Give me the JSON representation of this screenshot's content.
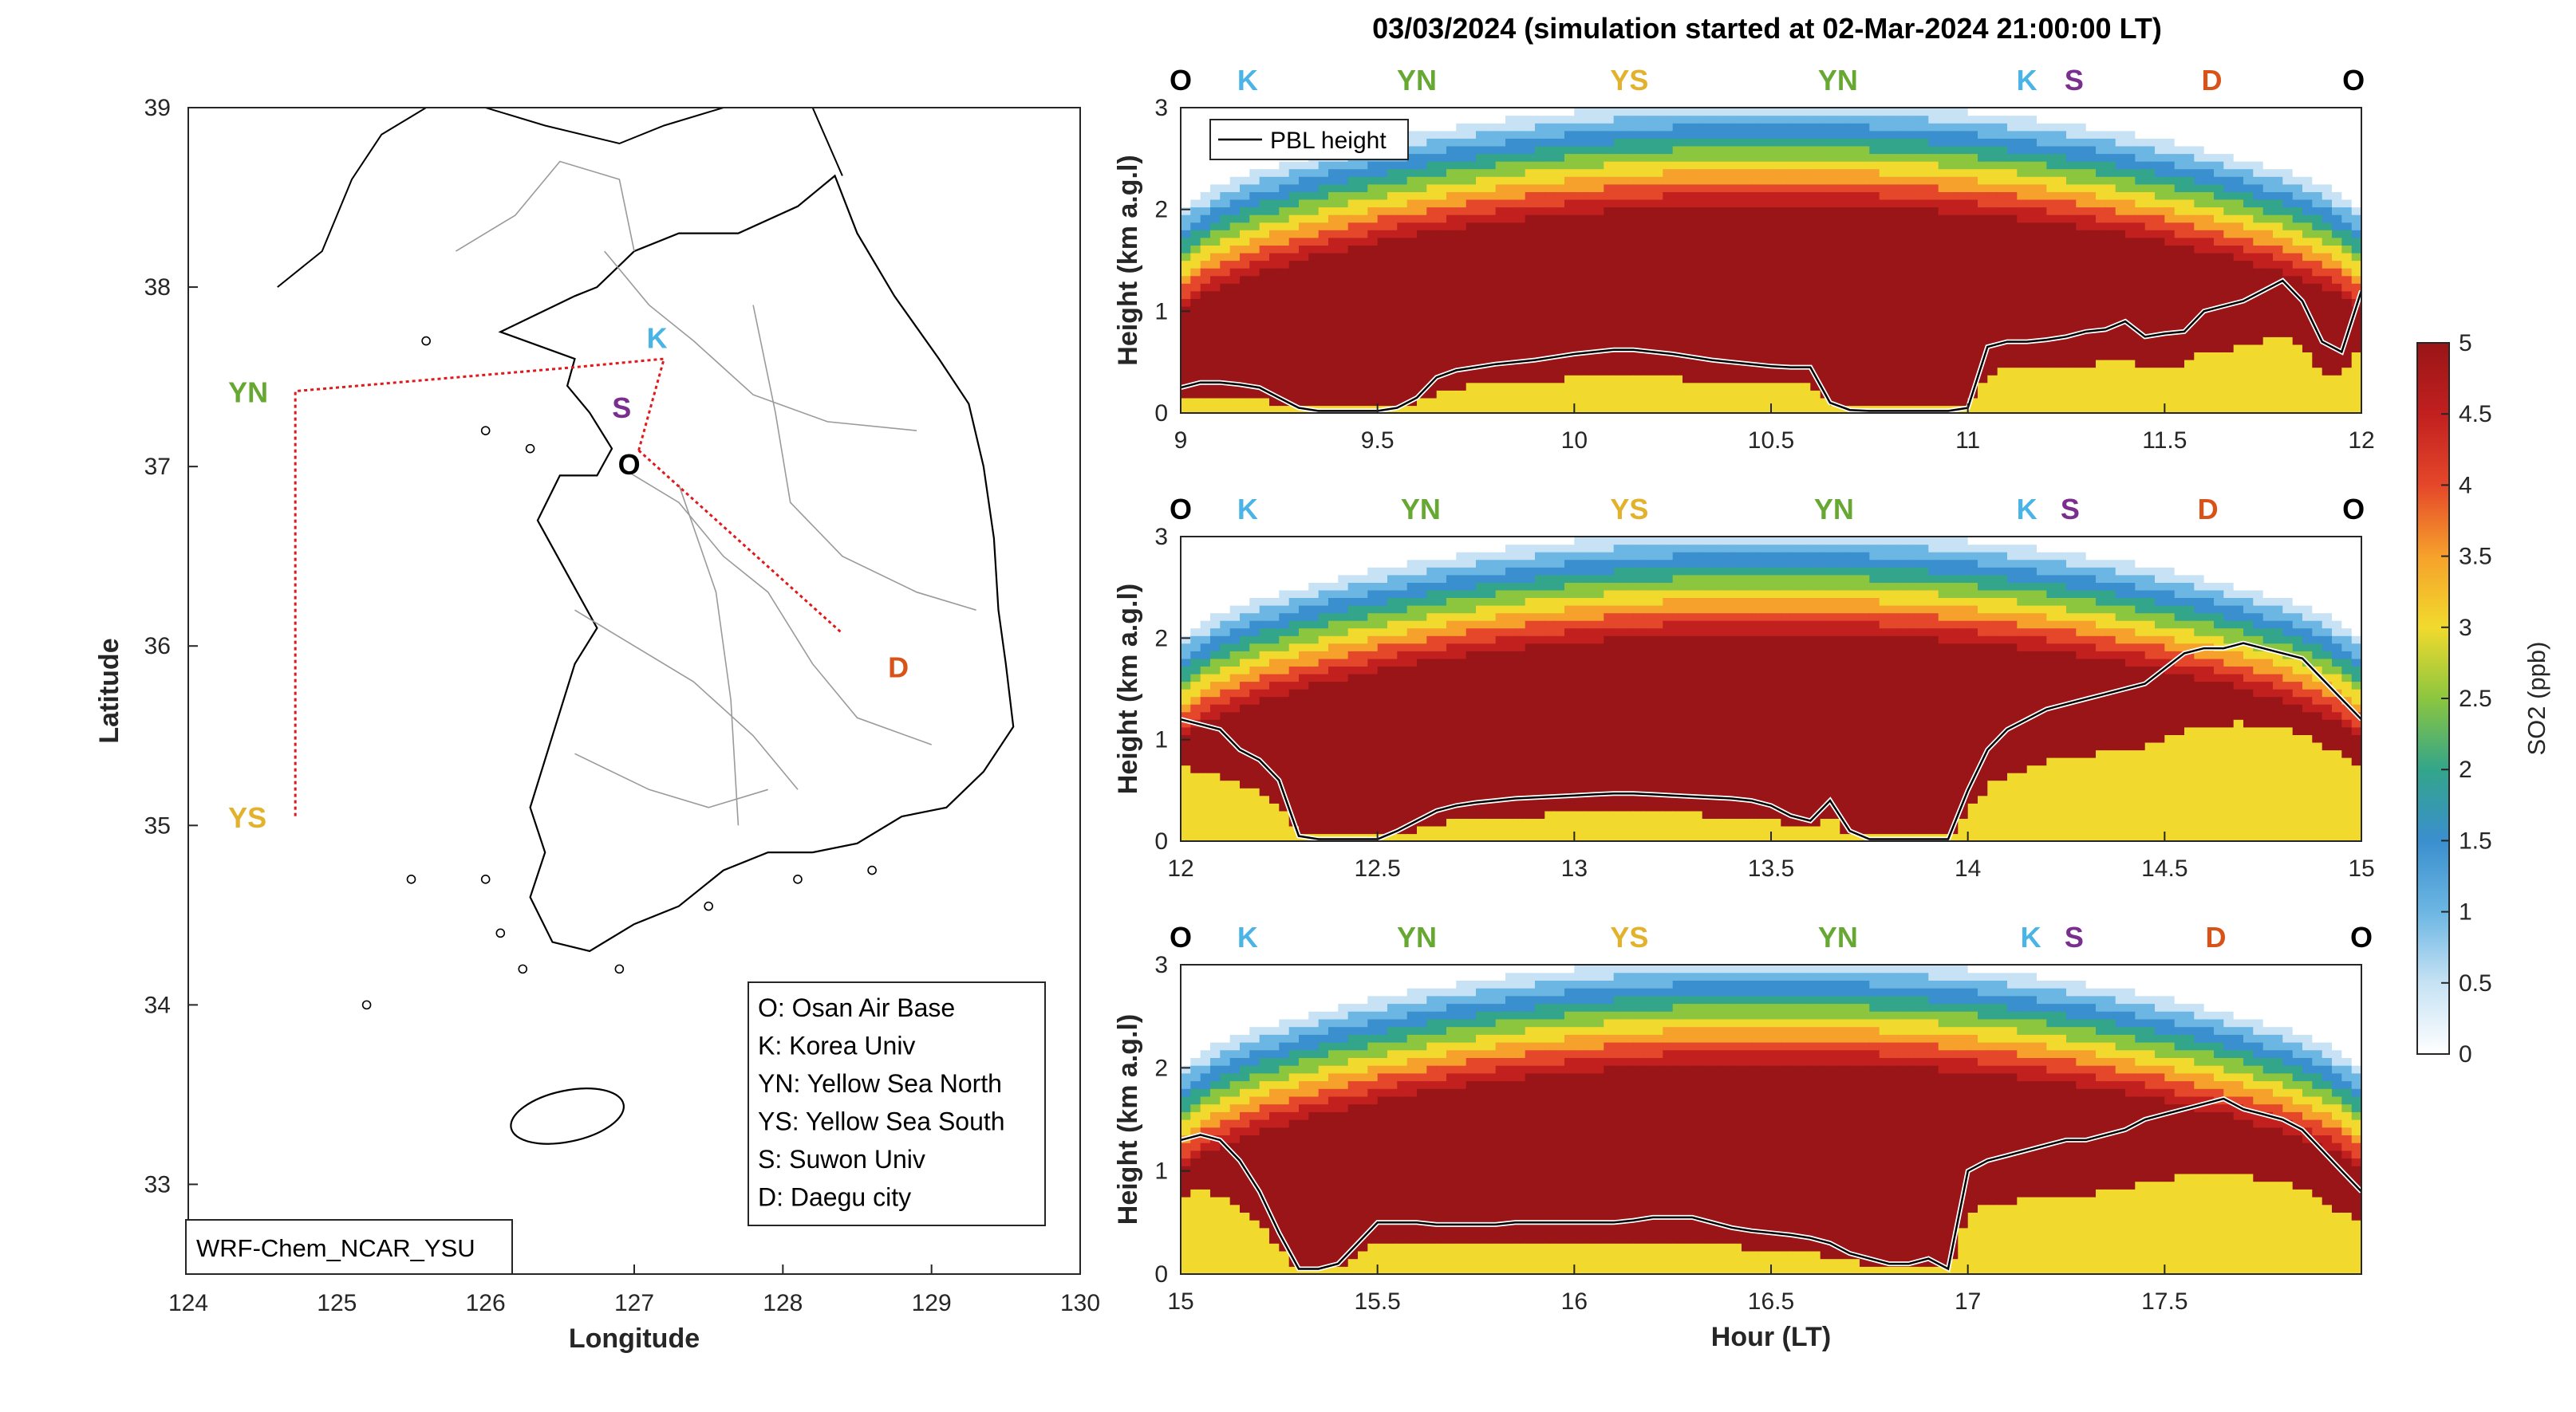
{
  "figure_title": "03/03/2024 (simulation started at 02-Mar-2024 21:00:00 LT)",
  "colors": {
    "O": "#000000",
    "K": "#4ab4e6",
    "YN": "#66a832",
    "YS": "#e3b22c",
    "S": "#7a2f8f",
    "D": "#d95319",
    "route": "#e0191c",
    "pbl": "#000000"
  },
  "map": {
    "xlabel": "Longitude",
    "ylabel": "Latitude",
    "xlim": [
      124,
      130
    ],
    "ylim": [
      32.5,
      39
    ],
    "xticks": [
      "124",
      "125",
      "126",
      "127",
      "128",
      "129",
      "130"
    ],
    "yticks": [
      "33",
      "34",
      "35",
      "36",
      "37",
      "38",
      "39"
    ],
    "model_label": "WRF-Chem_NCAR_YSU",
    "sites": [
      {
        "code": "YN",
        "lon": 124.72,
        "lat": 37.42
      },
      {
        "code": "YS",
        "lon": 124.72,
        "lat": 35.05
      },
      {
        "code": "K",
        "lon": 127.03,
        "lat": 37.59
      },
      {
        "code": "S",
        "lon": 126.98,
        "lat": 37.28
      },
      {
        "code": "O",
        "lon": 127.03,
        "lat": 37.09
      },
      {
        "code": "D",
        "lon": 128.6,
        "lat": 35.87
      }
    ],
    "route": [
      [
        127.03,
        37.09
      ],
      [
        127.2,
        37.6
      ],
      [
        126.55,
        37.55
      ],
      [
        124.72,
        37.42
      ],
      [
        124.72,
        35.05
      ]
    ],
    "route2": [
      [
        127.03,
        37.09
      ],
      [
        128.4,
        36.07
      ]
    ],
    "legend": [
      "O: Osan Air Base",
      "K: Korea Univ",
      "YN: Yellow Sea North",
      "YS: Yellow Sea South",
      "S: Suwon Univ",
      "D: Daegu city"
    ]
  },
  "chart_data": [
    {
      "type": "heatmap",
      "panel": 1,
      "xlabel": "",
      "ylabel": "Height (km a.g.l)",
      "xlim": [
        9,
        12
      ],
      "ylim": [
        0,
        3
      ],
      "xticks": [
        "9",
        "9.5",
        "10",
        "10.5",
        "11",
        "11.5",
        "12"
      ],
      "yticks": [
        "0",
        "1",
        "2",
        "3"
      ],
      "site_markers": [
        {
          "code": "O",
          "x": 9.0
        },
        {
          "code": "K",
          "x": 9.17
        },
        {
          "code": "YN",
          "x": 9.6
        },
        {
          "code": "YS",
          "x": 10.14
        },
        {
          "code": "YN",
          "x": 10.67
        },
        {
          "code": "K",
          "x": 11.15
        },
        {
          "code": "S",
          "x": 11.27
        },
        {
          "code": "D",
          "x": 11.62
        },
        {
          "code": "O",
          "x": 11.98
        }
      ],
      "legend": [
        "PBL height"
      ],
      "pbl_height": {
        "x": [
          9.0,
          9.05,
          9.1,
          9.15,
          9.2,
          9.25,
          9.3,
          9.35,
          9.4,
          9.45,
          9.5,
          9.55,
          9.6,
          9.65,
          9.7,
          9.75,
          9.8,
          9.85,
          9.9,
          9.95,
          10.0,
          10.05,
          10.1,
          10.15,
          10.2,
          10.25,
          10.3,
          10.35,
          10.4,
          10.45,
          10.5,
          10.55,
          10.6,
          10.65,
          10.7,
          10.75,
          10.8,
          10.85,
          10.9,
          10.95,
          11.0,
          11.05,
          11.1,
          11.15,
          11.2,
          11.25,
          11.3,
          11.35,
          11.4,
          11.45,
          11.5,
          11.55,
          11.6,
          11.65,
          11.7,
          11.75,
          11.8,
          11.85,
          11.9,
          11.95,
          12.0
        ],
        "y": [
          0.25,
          0.3,
          0.3,
          0.28,
          0.25,
          0.15,
          0.05,
          0.02,
          0.02,
          0.02,
          0.02,
          0.05,
          0.15,
          0.35,
          0.42,
          0.45,
          0.48,
          0.5,
          0.52,
          0.55,
          0.58,
          0.6,
          0.62,
          0.62,
          0.6,
          0.58,
          0.55,
          0.52,
          0.5,
          0.48,
          0.46,
          0.45,
          0.45,
          0.1,
          0.03,
          0.02,
          0.02,
          0.02,
          0.02,
          0.02,
          0.05,
          0.65,
          0.7,
          0.7,
          0.72,
          0.75,
          0.8,
          0.82,
          0.9,
          0.75,
          0.78,
          0.8,
          1.0,
          1.05,
          1.1,
          1.2,
          1.3,
          1.1,
          0.7,
          0.6,
          1.2
        ]
      }
    },
    {
      "type": "heatmap",
      "panel": 2,
      "xlabel": "",
      "ylabel": "Height (km a.g.l)",
      "xlim": [
        12,
        15
      ],
      "ylim": [
        0,
        3
      ],
      "xticks": [
        "12",
        "12.5",
        "13",
        "13.5",
        "14",
        "14.5",
        "15"
      ],
      "yticks": [
        "0",
        "1",
        "2",
        "3"
      ],
      "site_markers": [
        {
          "code": "O",
          "x": 12.0
        },
        {
          "code": "K",
          "x": 12.17
        },
        {
          "code": "YN",
          "x": 12.61
        },
        {
          "code": "YS",
          "x": 13.14
        },
        {
          "code": "YN",
          "x": 13.66
        },
        {
          "code": "K",
          "x": 14.15
        },
        {
          "code": "S",
          "x": 14.26
        },
        {
          "code": "D",
          "x": 14.61
        },
        {
          "code": "O",
          "x": 14.98
        }
      ],
      "pbl_height": {
        "x": [
          12.0,
          12.05,
          12.1,
          12.15,
          12.2,
          12.25,
          12.3,
          12.35,
          12.4,
          12.45,
          12.5,
          12.55,
          12.6,
          12.65,
          12.7,
          12.75,
          12.8,
          12.85,
          12.9,
          12.95,
          13.0,
          13.05,
          13.1,
          13.15,
          13.2,
          13.25,
          13.3,
          13.35,
          13.4,
          13.45,
          13.5,
          13.55,
          13.6,
          13.65,
          13.7,
          13.75,
          13.8,
          13.85,
          13.9,
          13.95,
          14.0,
          14.05,
          14.1,
          14.15,
          14.2,
          14.25,
          14.3,
          14.35,
          14.4,
          14.45,
          14.5,
          14.55,
          14.6,
          14.65,
          14.7,
          14.75,
          14.8,
          14.85,
          14.9,
          14.95,
          15.0
        ],
        "y": [
          1.2,
          1.15,
          1.1,
          0.9,
          0.8,
          0.6,
          0.05,
          0.02,
          0.02,
          0.02,
          0.02,
          0.1,
          0.2,
          0.3,
          0.35,
          0.38,
          0.4,
          0.42,
          0.43,
          0.44,
          0.45,
          0.46,
          0.47,
          0.47,
          0.46,
          0.45,
          0.44,
          0.43,
          0.42,
          0.4,
          0.35,
          0.25,
          0.2,
          0.4,
          0.1,
          0.02,
          0.02,
          0.02,
          0.02,
          0.02,
          0.5,
          0.9,
          1.1,
          1.2,
          1.3,
          1.35,
          1.4,
          1.45,
          1.5,
          1.55,
          1.7,
          1.85,
          1.9,
          1.9,
          1.95,
          1.9,
          1.85,
          1.8,
          1.6,
          1.4,
          1.2
        ]
      }
    },
    {
      "type": "heatmap",
      "panel": 3,
      "xlabel": "Hour (LT)",
      "ylabel": "Height (km a.g.l)",
      "xlim": [
        15,
        18
      ],
      "ylim": [
        0,
        3
      ],
      "xticks": [
        "15",
        "15.5",
        "16",
        "16.5",
        "17",
        "17.5"
      ],
      "yticks": [
        "0",
        "1",
        "2",
        "3"
      ],
      "site_markers": [
        {
          "code": "O",
          "x": 15.0
        },
        {
          "code": "K",
          "x": 15.17
        },
        {
          "code": "YN",
          "x": 15.6
        },
        {
          "code": "YS",
          "x": 16.14
        },
        {
          "code": "YN",
          "x": 16.67
        },
        {
          "code": "K",
          "x": 17.16
        },
        {
          "code": "S",
          "x": 17.27
        },
        {
          "code": "D",
          "x": 17.63
        },
        {
          "code": "O",
          "x": 18.0
        }
      ],
      "pbl_height": {
        "x": [
          15.0,
          15.05,
          15.1,
          15.15,
          15.2,
          15.25,
          15.3,
          15.35,
          15.4,
          15.45,
          15.5,
          15.55,
          15.6,
          15.65,
          15.7,
          15.75,
          15.8,
          15.85,
          15.9,
          15.95,
          16.0,
          16.05,
          16.1,
          16.15,
          16.2,
          16.25,
          16.3,
          16.35,
          16.4,
          16.45,
          16.5,
          16.55,
          16.6,
          16.65,
          16.7,
          16.75,
          16.8,
          16.85,
          16.9,
          16.95,
          17.0,
          17.05,
          17.1,
          17.15,
          17.2,
          17.25,
          17.3,
          17.35,
          17.4,
          17.45,
          17.5,
          17.55,
          17.6,
          17.65,
          17.7,
          17.75,
          17.8,
          17.85,
          17.9,
          17.95,
          18.0
        ],
        "y": [
          1.3,
          1.35,
          1.3,
          1.1,
          0.8,
          0.4,
          0.05,
          0.05,
          0.1,
          0.3,
          0.5,
          0.5,
          0.5,
          0.48,
          0.48,
          0.48,
          0.48,
          0.5,
          0.5,
          0.5,
          0.5,
          0.5,
          0.5,
          0.52,
          0.55,
          0.55,
          0.55,
          0.5,
          0.45,
          0.42,
          0.4,
          0.38,
          0.35,
          0.3,
          0.2,
          0.15,
          0.1,
          0.1,
          0.15,
          0.05,
          1.0,
          1.1,
          1.15,
          1.2,
          1.25,
          1.3,
          1.3,
          1.35,
          1.4,
          1.5,
          1.55,
          1.6,
          1.65,
          1.7,
          1.6,
          1.55,
          1.5,
          1.4,
          1.2,
          1.0,
          0.8
        ]
      }
    }
  ],
  "colorbar": {
    "label": "SO2 (ppb)",
    "ticks": [
      "0",
      "0.5",
      "1",
      "1.5",
      "2",
      "2.5",
      "3",
      "3.5",
      "4",
      "4.5",
      "5"
    ],
    "range": [
      0,
      5
    ]
  }
}
